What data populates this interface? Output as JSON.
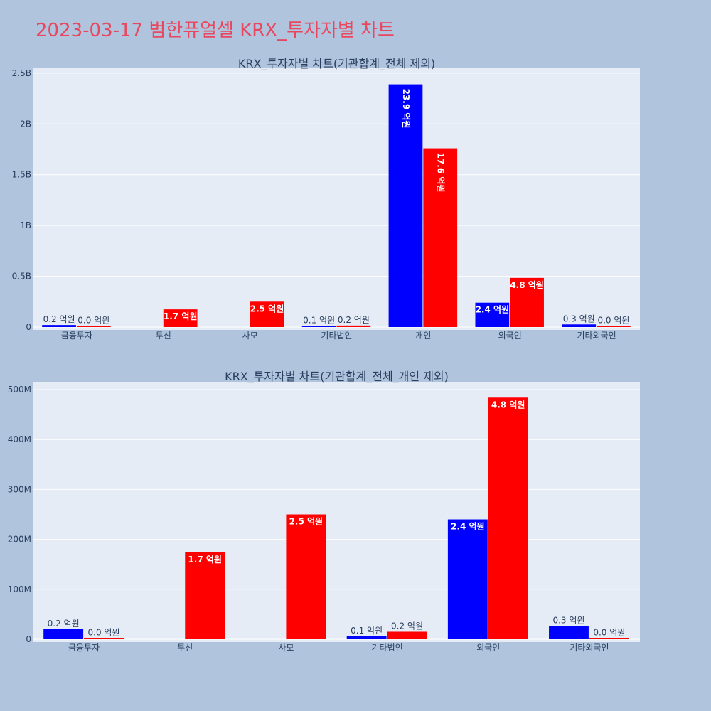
{
  "page": {
    "title": "2023-03-17 범한퓨얼셀 KRX_투자자별 차트",
    "title_color": "#e8475f",
    "background": "#b0c4de",
    "plot_background": "#e5ecf6"
  },
  "chart_data": [
    {
      "type": "bar",
      "title": "KRX_투자자별 차트(기관합계_전체 제외)",
      "categories": [
        "금융투자",
        "투신",
        "사모",
        "기타법인",
        "개인",
        "외국인",
        "기타외국인"
      ],
      "series": [
        {
          "color": "#0000ff",
          "values": [
            20000000,
            0,
            0,
            6000000,
            2390000000,
            240000000,
            26000000
          ],
          "labels": [
            "0.2 억원",
            "",
            "",
            "0.1 억원",
            "23.9 억원",
            "2.4 억원",
            "0.3 억원"
          ],
          "label_inside": [
            false,
            false,
            false,
            false,
            true,
            true,
            false
          ]
        },
        {
          "color": "#ff0000",
          "values": [
            1000000,
            174000000,
            250000000,
            15000000,
            1760000000,
            484000000,
            1000000
          ],
          "labels": [
            "0.0 억원",
            "1.7 억원",
            "2.5 억원",
            "0.2 억원",
            "17.6 억원",
            "4.8 억원",
            "0.0 억원"
          ],
          "label_inside": [
            false,
            true,
            true,
            false,
            true,
            true,
            false
          ]
        }
      ],
      "ylim": [
        0,
        2520000000
      ],
      "yticks": [
        0,
        500000000,
        1000000000,
        1500000000,
        2000000000,
        2500000000
      ],
      "ytick_labels": [
        "0",
        "0.5B",
        "1B",
        "1.5B",
        "2B",
        "2.5B"
      ],
      "grid": true
    },
    {
      "type": "bar",
      "title": "KRX_투자자별 차트(기관합계_전체_개인 제외)",
      "categories": [
        "금융투자",
        "투신",
        "사모",
        "기타법인",
        "외국인",
        "기타외국인"
      ],
      "series": [
        {
          "color": "#0000ff",
          "values": [
            20000000,
            0,
            0,
            6000000,
            240000000,
            26000000
          ],
          "labels": [
            "0.2 억원",
            "",
            "",
            "0.1 억원",
            "2.4 억원",
            "0.3 억원"
          ],
          "label_inside": [
            false,
            false,
            false,
            false,
            true,
            false
          ]
        },
        {
          "color": "#ff0000",
          "values": [
            1000000,
            174000000,
            250000000,
            15000000,
            484000000,
            1000000
          ],
          "labels": [
            "0.0 억원",
            "1.7 억원",
            "2.5 억원",
            "0.2 억원",
            "4.8 억원",
            "0.0 억원"
          ],
          "label_inside": [
            false,
            true,
            true,
            false,
            true,
            false
          ]
        }
      ],
      "ylim": [
        0,
        510000000
      ],
      "yticks": [
        0,
        100000000,
        200000000,
        300000000,
        400000000,
        500000000
      ],
      "ytick_labels": [
        "0",
        "100M",
        "200M",
        "300M",
        "400M",
        "500M"
      ],
      "grid": true
    }
  ]
}
